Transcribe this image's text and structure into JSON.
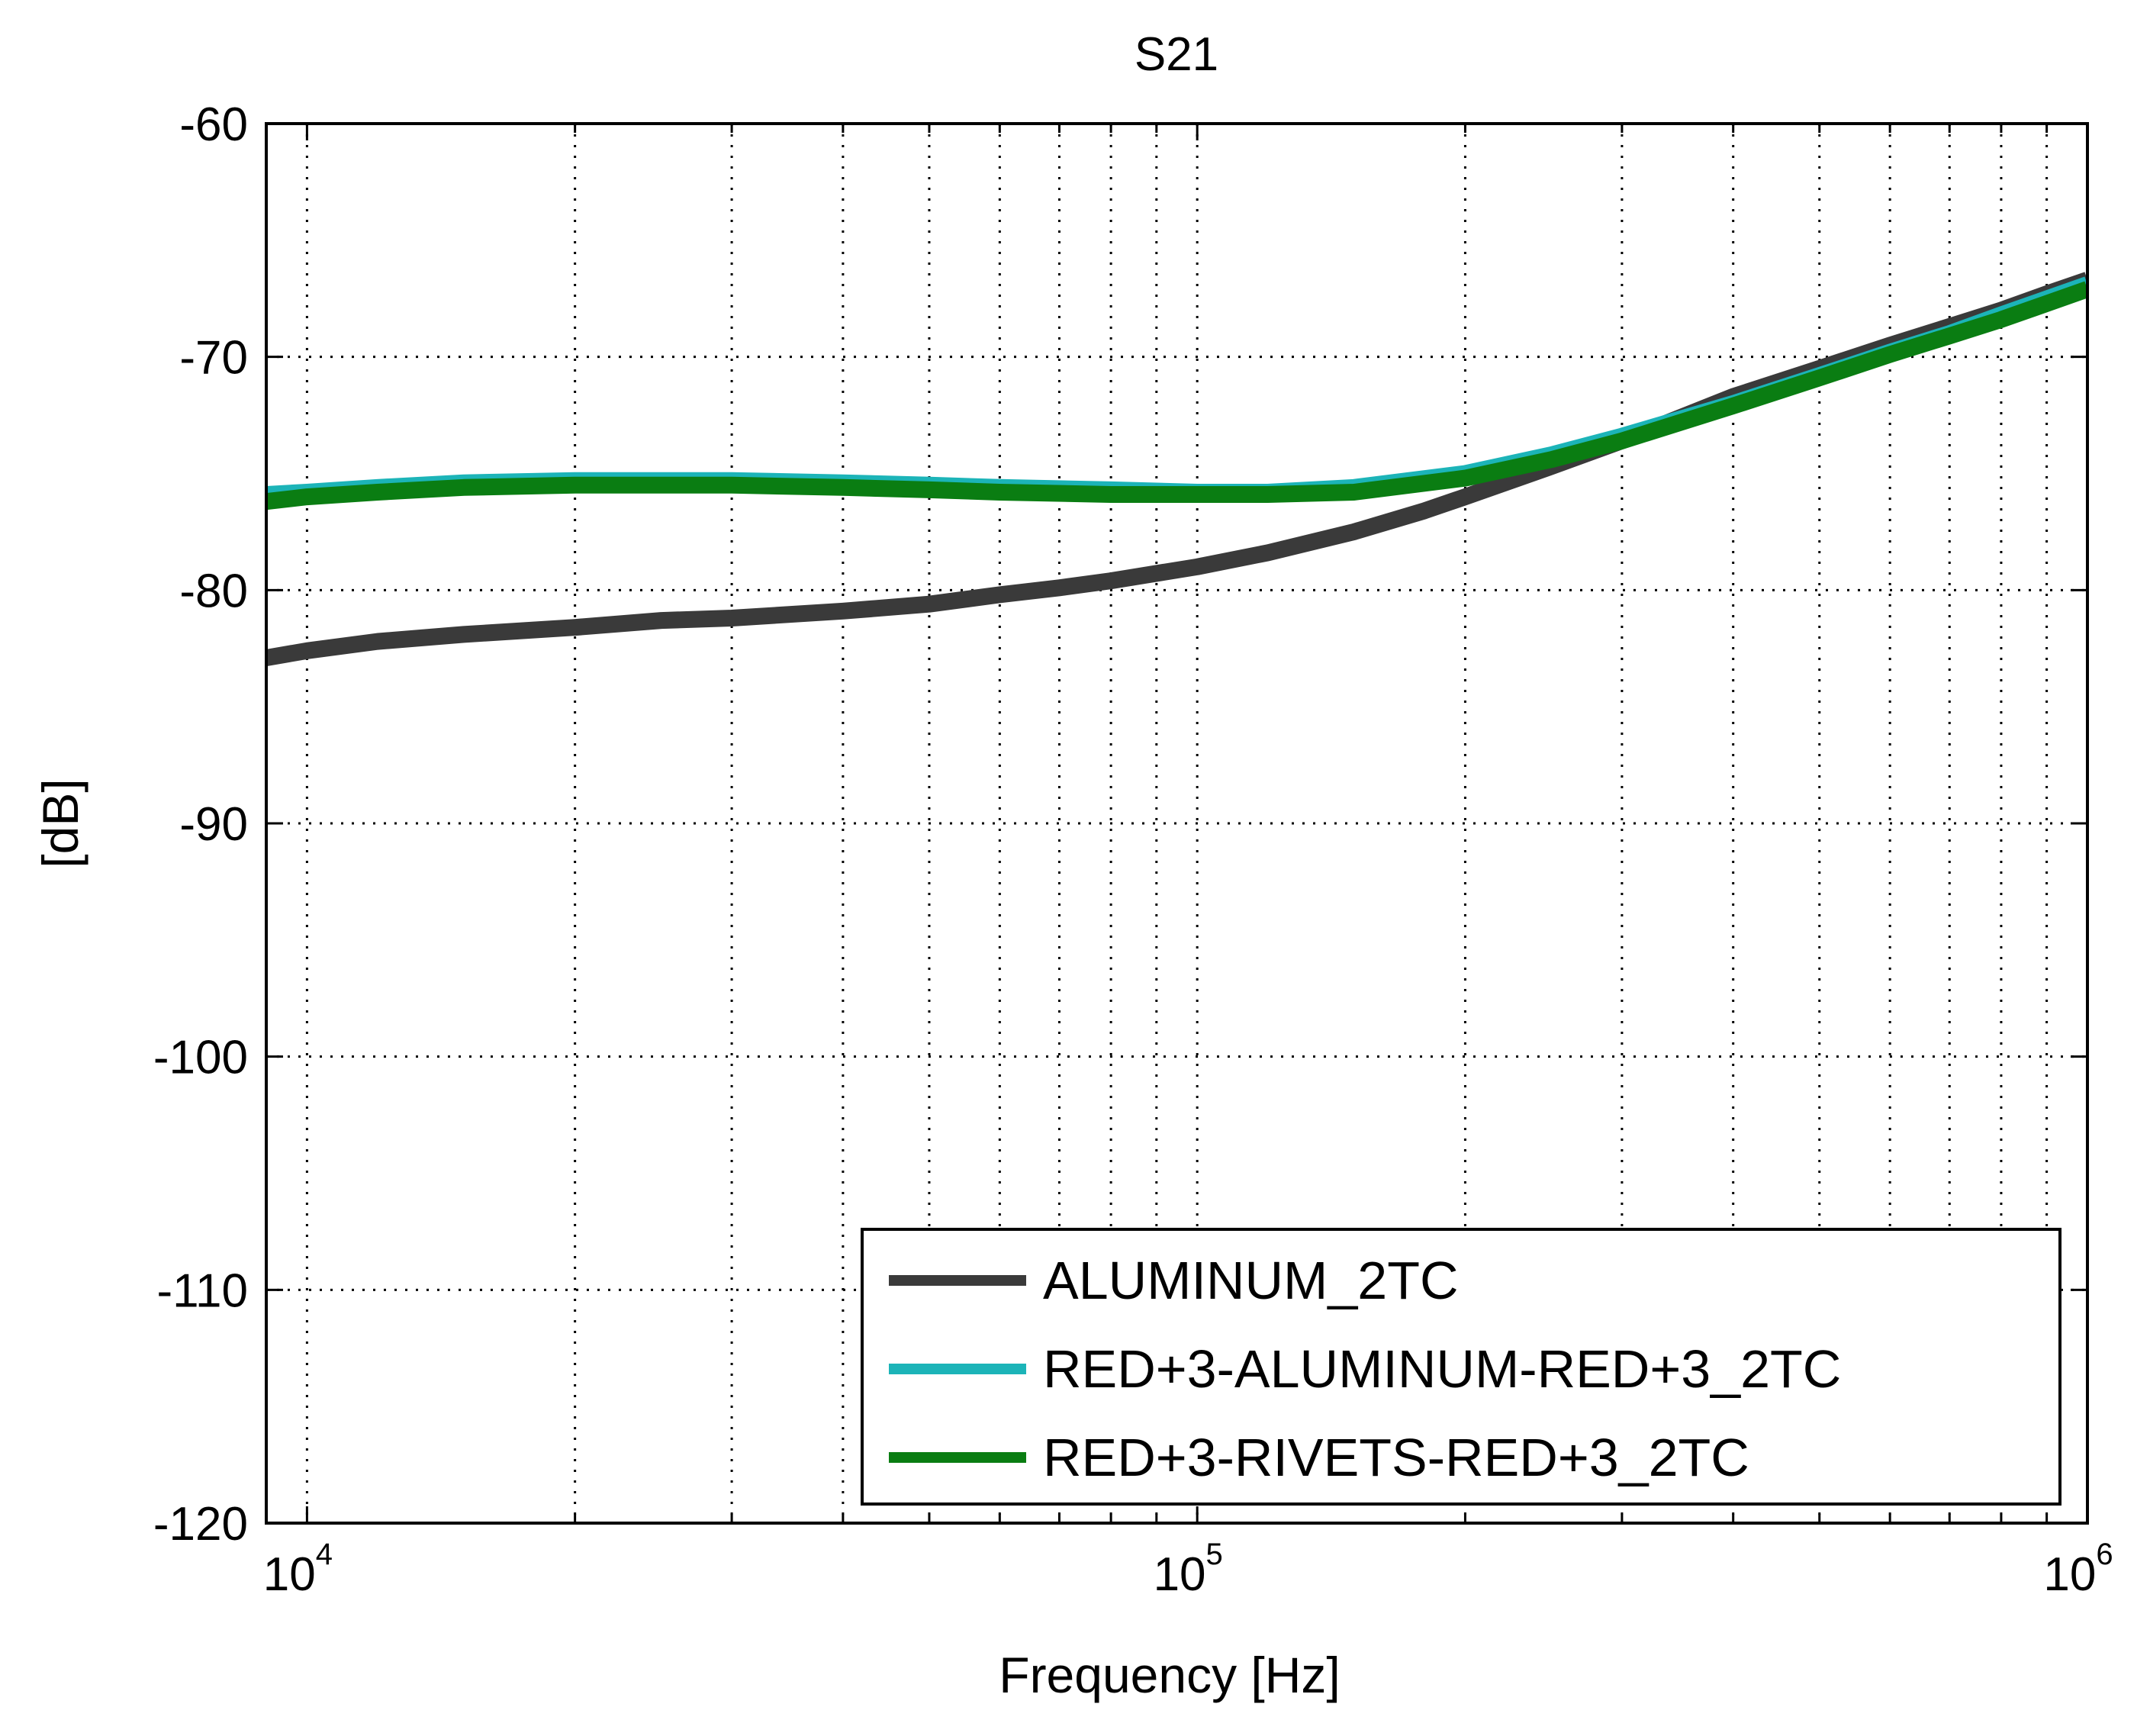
{
  "chart_data": {
    "type": "line",
    "title": "S21",
    "xlabel": "Frequency [Hz]",
    "ylabel": "[dB]",
    "xscale": "log",
    "xlim": [
      9000,
      1000000
    ],
    "ylim": [
      -120,
      -60
    ],
    "grid": true,
    "legend_position": "bottom-right",
    "yticks": [
      -60,
      -70,
      -80,
      -90,
      -100,
      -110,
      -120
    ],
    "xticks": [
      {
        "value": 10000,
        "base": "10",
        "exp": "4"
      },
      {
        "value": 100000,
        "base": "10",
        "exp": "5"
      },
      {
        "value": 1000000,
        "base": "10",
        "exp": "6"
      }
    ],
    "series": [
      {
        "name": "ALUMINUM_2TC",
        "color": "#3a3a3a",
        "points": [
          [
            9000,
            -82.9
          ],
          [
            10000,
            -82.6
          ],
          [
            12000,
            -82.2
          ],
          [
            15000,
            -81.9
          ],
          [
            20000,
            -81.6
          ],
          [
            25000,
            -81.3
          ],
          [
            30000,
            -81.2
          ],
          [
            40000,
            -80.9
          ],
          [
            50000,
            -80.6
          ],
          [
            60000,
            -80.2
          ],
          [
            70000,
            -79.9
          ],
          [
            80000,
            -79.6
          ],
          [
            100000,
            -79.0
          ],
          [
            120000,
            -78.4
          ],
          [
            150000,
            -77.5
          ],
          [
            180000,
            -76.6
          ],
          [
            200000,
            -76.0
          ],
          [
            250000,
            -74.7
          ],
          [
            300000,
            -73.6
          ],
          [
            400000,
            -71.7
          ],
          [
            500000,
            -70.5
          ],
          [
            600000,
            -69.5
          ],
          [
            700000,
            -68.7
          ],
          [
            800000,
            -68.0
          ],
          [
            900000,
            -67.3
          ],
          [
            1000000,
            -66.7
          ]
        ]
      },
      {
        "name": "RED+3-ALUMINUM-RED+3_2TC",
        "color": "#1cb4b8",
        "points": [
          [
            9000,
            -75.9
          ],
          [
            10000,
            -75.8
          ],
          [
            12000,
            -75.6
          ],
          [
            15000,
            -75.4
          ],
          [
            20000,
            -75.3
          ],
          [
            30000,
            -75.3
          ],
          [
            40000,
            -75.4
          ],
          [
            50000,
            -75.5
          ],
          [
            60000,
            -75.6
          ],
          [
            80000,
            -75.7
          ],
          [
            100000,
            -75.8
          ],
          [
            120000,
            -75.8
          ],
          [
            150000,
            -75.6
          ],
          [
            200000,
            -75.0
          ],
          [
            250000,
            -74.2
          ],
          [
            300000,
            -73.4
          ],
          [
            400000,
            -72.0
          ],
          [
            500000,
            -70.8
          ],
          [
            600000,
            -69.8
          ],
          [
            700000,
            -69.0
          ],
          [
            800000,
            -68.2
          ],
          [
            1000000,
            -66.9
          ]
        ]
      },
      {
        "name": "RED+3-RIVETS-RED+3_2TC",
        "color": "#0a7d12",
        "points": [
          [
            9000,
            -76.2
          ],
          [
            10000,
            -76.0
          ],
          [
            12000,
            -75.8
          ],
          [
            15000,
            -75.6
          ],
          [
            20000,
            -75.5
          ],
          [
            30000,
            -75.5
          ],
          [
            40000,
            -75.6
          ],
          [
            50000,
            -75.7
          ],
          [
            60000,
            -75.8
          ],
          [
            80000,
            -75.9
          ],
          [
            100000,
            -75.9
          ],
          [
            120000,
            -75.9
          ],
          [
            150000,
            -75.8
          ],
          [
            200000,
            -75.2
          ],
          [
            250000,
            -74.4
          ],
          [
            300000,
            -73.6
          ],
          [
            400000,
            -72.1
          ],
          [
            500000,
            -70.9
          ],
          [
            600000,
            -69.9
          ],
          [
            700000,
            -69.1
          ],
          [
            800000,
            -68.4
          ],
          [
            1000000,
            -67.1
          ]
        ]
      }
    ]
  }
}
